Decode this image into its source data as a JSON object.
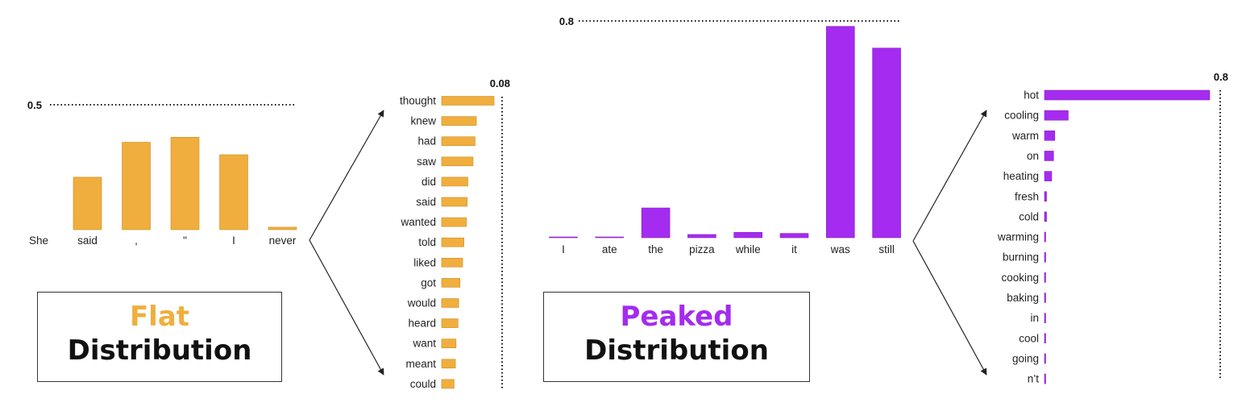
{
  "colors": {
    "flat": "#f0ae3e",
    "flat_dark": "#cf8c22",
    "peaked": "#a42bef",
    "peaked_dark": "#8a26c2",
    "line": "#222222"
  },
  "labels": {
    "flat_word": "Flat",
    "peaked_word": "Peaked",
    "distribution_word": "Distribution"
  },
  "chart_data": [
    {
      "type": "bar",
      "categories": [
        "She",
        "said",
        ",",
        "\"",
        "I",
        "never"
      ],
      "values": [
        0.0,
        0.21,
        0.35,
        0.37,
        0.3,
        0.01
      ],
      "reference_line": {
        "value": 0.5,
        "label": "0.5"
      },
      "ylim": [
        0,
        0.5
      ]
    },
    {
      "type": "bar",
      "orientation": "horizontal",
      "categories": [
        "thought",
        "knew",
        "had",
        "saw",
        "did",
        "said",
        "wanted",
        "told",
        "liked",
        "got",
        "would",
        "heard",
        "want",
        "meant",
        "could"
      ],
      "values": [
        0.08,
        0.053,
        0.051,
        0.048,
        0.04,
        0.039,
        0.038,
        0.034,
        0.032,
        0.028,
        0.026,
        0.025,
        0.022,
        0.021,
        0.019
      ],
      "reference_line": {
        "value": 0.08,
        "label": "0.08"
      },
      "xlim": [
        0,
        0.08
      ]
    },
    {
      "type": "bar",
      "categories": [
        "I",
        "ate",
        "the",
        "pizza",
        "while",
        "it",
        "was",
        "still"
      ],
      "values": [
        0.003,
        0.003,
        0.11,
        0.012,
        0.02,
        0.016,
        0.78,
        0.7
      ],
      "reference_line": {
        "value": 0.8,
        "label": "0.8"
      },
      "ylim": [
        0,
        0.8
      ]
    },
    {
      "type": "bar",
      "orientation": "horizontal",
      "categories": [
        "hot",
        "cooling",
        "warm",
        "on",
        "heating",
        "fresh",
        "cold",
        "warming",
        "burning",
        "cooking",
        "baking",
        "in",
        "cool",
        "going",
        "n’t"
      ],
      "values": [
        0.8,
        0.115,
        0.05,
        0.044,
        0.035,
        0.01,
        0.01,
        0.005,
        0.005,
        0.005,
        0.005,
        0.005,
        0.005,
        0.005,
        0.005
      ],
      "reference_line": {
        "value": 0.8,
        "label": "0.8"
      },
      "xlim": [
        0,
        0.8
      ]
    }
  ]
}
